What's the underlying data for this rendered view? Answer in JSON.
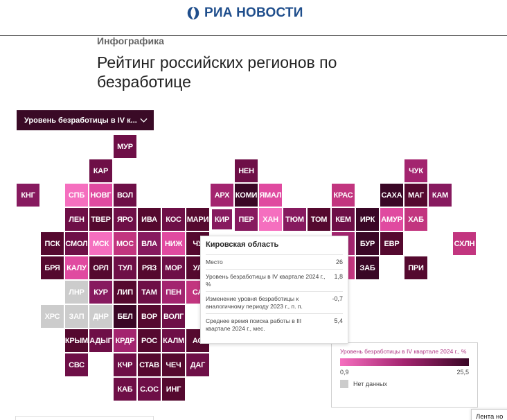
{
  "header": {
    "logo_text": "РИА НОВОСТИ"
  },
  "article": {
    "kicker": "Инфографика",
    "title": "Рейтинг российских регионов по безработице"
  },
  "dropdown": {
    "label": "Уровень безработицы в IV к..."
  },
  "colors": {
    "scale": [
      "#f56fbf",
      "#e04aa0",
      "#c2357f",
      "#a3246f",
      "#871a5f",
      "#6e0f47",
      "#55092f",
      "#3a0726"
    ],
    "nodata": "#cccccc",
    "dropdown_bg": "#3a0a26",
    "logo_blue": "#1f4e8c"
  },
  "tiles": [
    {
      "code": "МУР",
      "row": 0,
      "col": 4,
      "shade": 5
    },
    {
      "code": "КАР",
      "row": 1,
      "col": 3,
      "shade": 5
    },
    {
      "code": "НЕН",
      "row": 1,
      "col": 9,
      "shade": 5
    },
    {
      "code": "ЧУК",
      "row": 1,
      "col": 16,
      "shade": 3
    },
    {
      "code": "КНГ",
      "row": 2,
      "col": 0,
      "shade": 4
    },
    {
      "code": "СПБ",
      "row": 2,
      "col": 2,
      "shade": 0
    },
    {
      "code": "НОВГ",
      "row": 2,
      "col": 3,
      "shade": 1
    },
    {
      "code": "ВОЛ",
      "row": 2,
      "col": 4,
      "shade": 5
    },
    {
      "code": "АРХ",
      "row": 2,
      "col": 8,
      "shade": 3
    },
    {
      "code": "КОМИ",
      "row": 2,
      "col": 9,
      "shade": 7
    },
    {
      "code": "ЯМАЛ",
      "row": 2,
      "col": 10,
      "shade": 1
    },
    {
      "code": "КРАС",
      "row": 2,
      "col": 13,
      "shade": 2
    },
    {
      "code": "САХА",
      "row": 2,
      "col": 15,
      "shade": 7
    },
    {
      "code": "МАГ",
      "row": 2,
      "col": 16,
      "shade": 6
    },
    {
      "code": "КАМ",
      "row": 2,
      "col": 17,
      "shade": 4
    },
    {
      "code": "ЛЕН",
      "row": 3,
      "col": 2,
      "shade": 5
    },
    {
      "code": "ТВЕР",
      "row": 3,
      "col": 3,
      "shade": 6
    },
    {
      "code": "ЯРО",
      "row": 3,
      "col": 4,
      "shade": 5
    },
    {
      "code": "ИВА",
      "row": 3,
      "col": 5,
      "shade": 6
    },
    {
      "code": "КОС",
      "row": 3,
      "col": 6,
      "shade": 5
    },
    {
      "code": "МАРИ",
      "row": 3,
      "col": 7,
      "shade": 6
    },
    {
      "code": "КИР",
      "row": 3,
      "col": 8,
      "shade": 4,
      "active": true
    },
    {
      "code": "ПЕР",
      "row": 3,
      "col": 9,
      "shade": 4
    },
    {
      "code": "ХАН",
      "row": 3,
      "col": 10,
      "shade": 0
    },
    {
      "code": "ТЮМ",
      "row": 3,
      "col": 11,
      "shade": 4
    },
    {
      "code": "ТОМ",
      "row": 3,
      "col": 12,
      "shade": 6
    },
    {
      "code": "КЕМ",
      "row": 3,
      "col": 13,
      "shade": 5
    },
    {
      "code": "ИРК",
      "row": 3,
      "col": 14,
      "shade": 7
    },
    {
      "code": "АМУР",
      "row": 3,
      "col": 15,
      "shade": 1
    },
    {
      "code": "ХАБ",
      "row": 3,
      "col": 16,
      "shade": 2
    },
    {
      "code": "ПСК",
      "row": 4,
      "col": 1,
      "shade": 6
    },
    {
      "code": "СМОЛ",
      "row": 4,
      "col": 2,
      "shade": 5
    },
    {
      "code": "МСК",
      "row": 4,
      "col": 3,
      "shade": 0
    },
    {
      "code": "МОС",
      "row": 4,
      "col": 4,
      "shade": 2
    },
    {
      "code": "ВЛА",
      "row": 4,
      "col": 5,
      "shade": 4
    },
    {
      "code": "НИЖ",
      "row": 4,
      "col": 6,
      "shade": 1
    },
    {
      "code": "ЧУ",
      "row": 4,
      "col": 7,
      "shade": 6
    },
    {
      "code": "К",
      "row": 4,
      "col": 13,
      "shade": 3
    },
    {
      "code": "БУР",
      "row": 4,
      "col": 14,
      "shade": 7
    },
    {
      "code": "ЕВР",
      "row": 4,
      "col": 15,
      "shade": 6
    },
    {
      "code": "СХЛН",
      "row": 4,
      "col": 18,
      "shade": 2
    },
    {
      "code": "БРЯ",
      "row": 5,
      "col": 1,
      "shade": 6
    },
    {
      "code": "КАЛУ",
      "row": 5,
      "col": 2,
      "shade": 1
    },
    {
      "code": "ОРЛ",
      "row": 5,
      "col": 3,
      "shade": 6
    },
    {
      "code": "ТУЛ",
      "row": 5,
      "col": 4,
      "shade": 5
    },
    {
      "code": "РЯЗ",
      "row": 5,
      "col": 5,
      "shade": 6
    },
    {
      "code": "МОР",
      "row": 5,
      "col": 6,
      "shade": 5
    },
    {
      "code": "УЛ",
      "row": 5,
      "col": 7,
      "shade": 6
    },
    {
      "code": "А",
      "row": 5,
      "col": 13,
      "shade": 2
    },
    {
      "code": "ЗАБ",
      "row": 5,
      "col": 14,
      "shade": 7
    },
    {
      "code": "ПРИ",
      "row": 5,
      "col": 16,
      "shade": 6
    },
    {
      "code": "ЛНР",
      "row": 6,
      "col": 2,
      "nodata": true
    },
    {
      "code": "КУР",
      "row": 6,
      "col": 3,
      "shade": 4
    },
    {
      "code": "ЛИП",
      "row": 6,
      "col": 4,
      "shade": 6
    },
    {
      "code": "ТАМ",
      "row": 6,
      "col": 5,
      "shade": 5
    },
    {
      "code": "ПЕН",
      "row": 6,
      "col": 6,
      "shade": 3
    },
    {
      "code": "СА",
      "row": 6,
      "col": 7,
      "shade": 2
    },
    {
      "code": "ХРС",
      "row": 7,
      "col": 1,
      "nodata": true
    },
    {
      "code": "ЗАП",
      "row": 7,
      "col": 2,
      "nodata": true
    },
    {
      "code": "ДНР",
      "row": 7,
      "col": 3,
      "nodata": true
    },
    {
      "code": "БЕЛ",
      "row": 7,
      "col": 4,
      "shade": 7
    },
    {
      "code": "ВОР",
      "row": 7,
      "col": 5,
      "shade": 6
    },
    {
      "code": "ВОЛГ",
      "row": 7,
      "col": 6,
      "shade": 5
    },
    {
      "code": "КРЫМ",
      "row": 8,
      "col": 2,
      "shade": 6
    },
    {
      "code": "АДЫГ",
      "row": 8,
      "col": 3,
      "shade": 5
    },
    {
      "code": "КРДР",
      "row": 8,
      "col": 4,
      "shade": 3
    },
    {
      "code": "РОС",
      "row": 8,
      "col": 5,
      "shade": 6
    },
    {
      "code": "КАЛМ",
      "row": 8,
      "col": 6,
      "shade": 5
    },
    {
      "code": "АС",
      "row": 8,
      "col": 7,
      "shade": 6
    },
    {
      "code": "СВС",
      "row": 9,
      "col": 2,
      "shade": 5
    },
    {
      "code": "КЧР",
      "row": 9,
      "col": 4,
      "shade": 5
    },
    {
      "code": "СТАВ",
      "row": 9,
      "col": 5,
      "shade": 6
    },
    {
      "code": "ЧЕЧ",
      "row": 9,
      "col": 6,
      "shade": 6
    },
    {
      "code": "ДАГ",
      "row": 9,
      "col": 7,
      "shade": 5
    },
    {
      "code": "КАБ",
      "row": 10,
      "col": 4,
      "shade": 5
    },
    {
      "code": "С.ОС",
      "row": 10,
      "col": 5,
      "shade": 5
    },
    {
      "code": "ИНГ",
      "row": 10,
      "col": 6,
      "shade": 6
    }
  ],
  "tooltip": {
    "region": "Кировская область",
    "rows": [
      {
        "label": "Место",
        "value": "26"
      },
      {
        "label": "Уровень безработицы в IV квартале 2024 г., %",
        "value": "1,8"
      },
      {
        "label": "Изменение уровня безработицы к аналогичному периоду 2023 г., п. п.",
        "value": "-0,7"
      },
      {
        "label": "Среднее время поиска работы в III квартале 2024 г.,  мес.",
        "value": "5,4"
      }
    ]
  },
  "legend": {
    "title": "Уровень безработицы в IV квартале 2024 г., %",
    "min": "0,9",
    "max": "25,5",
    "nodata_label": "Нет данных"
  },
  "footer": {
    "news_feed_label": "Лента но"
  }
}
